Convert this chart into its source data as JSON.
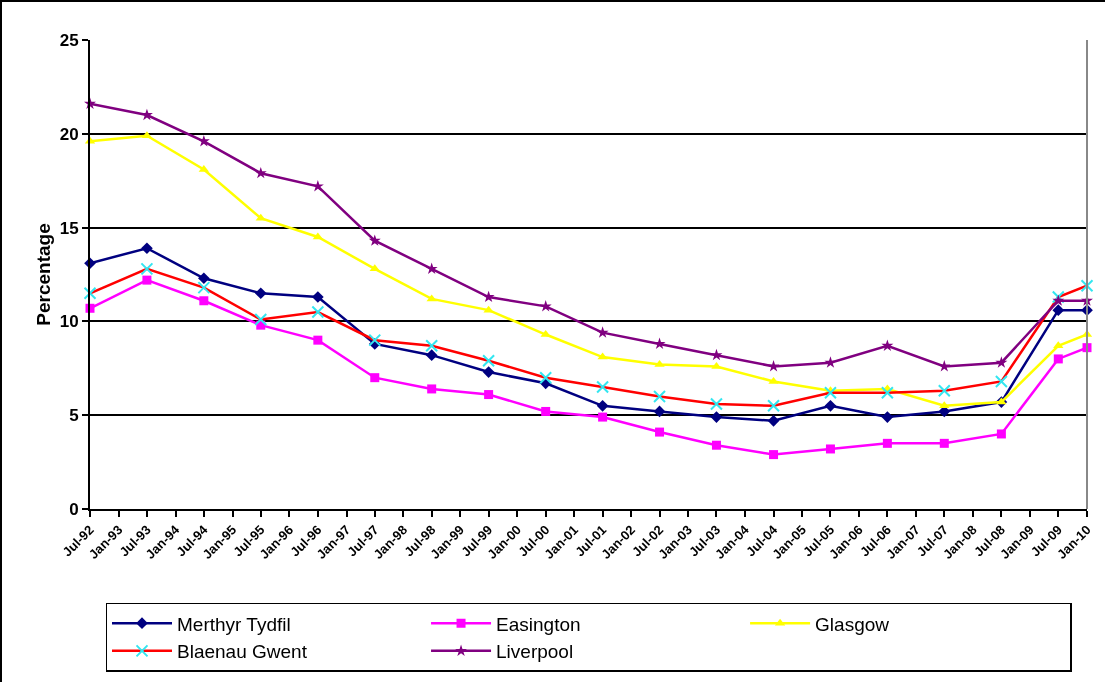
{
  "chart_data": {
    "type": "line",
    "ylabel": "Percentage",
    "x": [
      "1992-07",
      "1993-07",
      "1994-07",
      "1995-07",
      "1996-07",
      "1997-07",
      "1998-07",
      "1999-07",
      "2000-07",
      "2001-07",
      "2002-07",
      "2003-07",
      "2004-07",
      "2005-07",
      "2006-07",
      "2007-07",
      "2008-07",
      "2009-07",
      "2010-01"
    ],
    "series": [
      {
        "name": "Merthyr Tydfil",
        "color": "#000080",
        "marker": "diamond",
        "values": [
          13.1,
          13.9,
          12.3,
          11.5,
          11.3,
          8.8,
          8.2,
          7.3,
          6.7,
          5.5,
          5.2,
          4.9,
          4.7,
          5.5,
          4.9,
          5.2,
          5.7,
          10.6,
          10.6
        ]
      },
      {
        "name": "Easington",
        "color": "#ff00ff",
        "marker": "square",
        "values": [
          10.7,
          12.2,
          11.1,
          9.8,
          9.0,
          7.0,
          6.4,
          6.1,
          5.2,
          4.9,
          4.1,
          3.4,
          2.9,
          3.2,
          3.5,
          3.5,
          4.0,
          8.0,
          8.6
        ]
      },
      {
        "name": "Glasgow",
        "color": "#ffff00",
        "marker": "triangle",
        "values": [
          19.6,
          19.9,
          18.1,
          15.5,
          14.5,
          12.8,
          11.2,
          10.6,
          9.3,
          8.1,
          7.7,
          7.6,
          6.8,
          6.3,
          6.4,
          5.5,
          5.7,
          8.7,
          9.3
        ]
      },
      {
        "name": "Blaenau Gwent",
        "color": "#ff0000",
        "marker": "cross",
        "colors": [
          "#33e6f0",
          "#33e6f0",
          "#33e6f0",
          "#33e6f0",
          "#33e6f0",
          "#33e6f0",
          "#33e6f0",
          "#33e6f0",
          "#33e6f0",
          "#33e6f0",
          "#33e6f0",
          "#33e6f0",
          "#33e6f0",
          "#33e6f0",
          "#33e6f0",
          "#33e6f0",
          "#33e6f0",
          "#33e6f0",
          "#33e6f0"
        ],
        "values": [
          11.5,
          12.8,
          11.8,
          10.1,
          10.5,
          9.0,
          8.7,
          7.9,
          7.0,
          6.5,
          6.0,
          5.6,
          5.5,
          6.2,
          6.2,
          6.3,
          6.8,
          11.3,
          11.9
        ]
      },
      {
        "name": "Liverpool",
        "color": "#800080",
        "marker": "star",
        "values": [
          21.6,
          21.0,
          19.6,
          17.9,
          17.2,
          14.3,
          12.8,
          11.3,
          10.8,
          9.4,
          8.8,
          8.2,
          7.6,
          7.8,
          8.7,
          7.6,
          7.8,
          11.1,
          11.1
        ]
      }
    ],
    "xlim": [
      "1992-07",
      "2010-01"
    ],
    "xticks": [
      {
        "value": "1992-07",
        "label": "Jul-92"
      },
      {
        "value": "1993-01",
        "label": "Jan-93"
      },
      {
        "value": "1993-07",
        "label": "Jul-93"
      },
      {
        "value": "1994-01",
        "label": "Jan-94"
      },
      {
        "value": "1994-07",
        "label": "Jul-94"
      },
      {
        "value": "1995-01",
        "label": "Jan-95"
      },
      {
        "value": "1995-07",
        "label": "Jul-95"
      },
      {
        "value": "1996-01",
        "label": "Jan-96"
      },
      {
        "value": "1996-07",
        "label": "Jul-96"
      },
      {
        "value": "1997-01",
        "label": "Jan-97"
      },
      {
        "value": "1997-07",
        "label": "Jul-97"
      },
      {
        "value": "1998-01",
        "label": "Jan-98"
      },
      {
        "value": "1998-07",
        "label": "Jul-98"
      },
      {
        "value": "1999-01",
        "label": "Jan-99"
      },
      {
        "value": "1999-07",
        "label": "Jul-99"
      },
      {
        "value": "2000-01",
        "label": "Jan-00"
      },
      {
        "value": "2000-07",
        "label": "Jul-00"
      },
      {
        "value": "2001-01",
        "label": "Jan-01"
      },
      {
        "value": "2001-07",
        "label": "Jul-01"
      },
      {
        "value": "2002-01",
        "label": "Jan-02"
      },
      {
        "value": "2002-07",
        "label": "Jul-02"
      },
      {
        "value": "2003-01",
        "label": "Jan-03"
      },
      {
        "value": "2003-07",
        "label": "Jul-03"
      },
      {
        "value": "2004-01",
        "label": "Jan-04"
      },
      {
        "value": "2004-07",
        "label": "Jul-04"
      },
      {
        "value": "2005-01",
        "label": "Jan-05"
      },
      {
        "value": "2005-07",
        "label": "Jul-05"
      },
      {
        "value": "2006-01",
        "label": "Jan-06"
      },
      {
        "value": "2006-07",
        "label": "Jul-06"
      },
      {
        "value": "2007-01",
        "label": "Jan-07"
      },
      {
        "value": "2007-07",
        "label": "Jul-07"
      },
      {
        "value": "2008-01",
        "label": "Jan-08"
      },
      {
        "value": "2008-07",
        "label": "Jul-08"
      },
      {
        "value": "2009-01",
        "label": "Jan-09"
      },
      {
        "value": "2009-07",
        "label": "Jul-09"
      },
      {
        "value": "2010-01",
        "label": "Jan-10"
      }
    ],
    "ylim": [
      0,
      25
    ],
    "yticks": [
      0,
      5,
      10,
      15,
      20,
      25
    ],
    "grid": "y",
    "legend": "bottom",
    "line_style": "solid"
  }
}
